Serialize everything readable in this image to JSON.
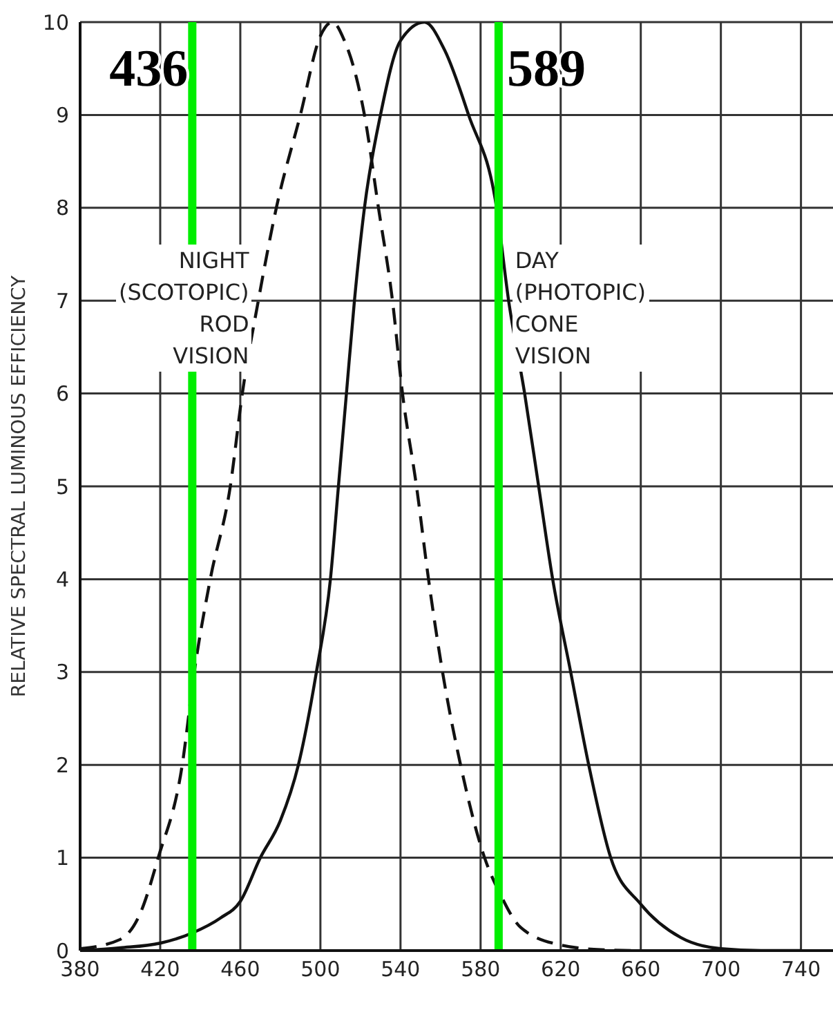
{
  "chart_data": {
    "type": "line",
    "ylabel": "RELATIVE SPECTRAL LUMINOUS EFFICIENCY",
    "xlim": [
      380,
      756
    ],
    "xticks": [
      380,
      420,
      460,
      500,
      540,
      580,
      620,
      660,
      700,
      740
    ],
    "ylim": [
      0,
      10
    ],
    "yticks": [
      0,
      1,
      2,
      3,
      4,
      5,
      6,
      7,
      8,
      9,
      10
    ],
    "grid": true,
    "legend": false,
    "marker": "none",
    "series": [
      {
        "color": "#111111",
        "line_style": "dashed",
        "x": [
          380,
          400,
          410,
          419,
          431,
          437,
          445,
          455,
          461,
          469,
          478,
          490,
          500,
          506,
          512,
          518,
          522,
          529,
          536,
          541,
          548,
          554,
          561,
          570,
          582,
          590,
          600,
          620,
          640,
          660
        ],
        "values": [
          0.02,
          0.12,
          0.4,
          1,
          2,
          3,
          4,
          5,
          6,
          7,
          8,
          9,
          9.85,
          10,
          9.8,
          9.4,
          9,
          8,
          7,
          6,
          5,
          4,
          3,
          2,
          1,
          0.6,
          0.25,
          0.06,
          0.01,
          0
        ]
      },
      {
        "color": "#111111",
        "line_style": "solid",
        "x": [
          380,
          400,
          420,
          436,
          450,
          460,
          470,
          480,
          489,
          498,
          505,
          509,
          513,
          517,
          522,
          530,
          540,
          552,
          562,
          574,
          588,
          594,
          602,
          609,
          616,
          625,
          634,
          645,
          660,
          680,
          700,
          720,
          740
        ],
        "values": [
          0,
          0.03,
          0.08,
          0.19,
          0.35,
          0.53,
          1,
          1.4,
          2,
          3,
          4,
          5,
          6,
          7,
          8,
          9,
          9.8,
          10,
          9.7,
          9,
          8,
          7,
          6,
          5,
          4,
          3,
          2,
          1,
          0.5,
          0.14,
          0.02,
          0,
          0
        ]
      }
    ],
    "ref_lines": [
      {
        "axis": "x",
        "value": 436,
        "label": "436",
        "color": "#00ee00"
      },
      {
        "axis": "x",
        "value": 589,
        "label": "589",
        "color": "#00ee00"
      }
    ],
    "annotations": [
      "NIGHT\n(SCOTOPIC)\nROD\nVISION",
      "DAY\n(PHOTOPIC)\nCONE\nVISION"
    ]
  }
}
